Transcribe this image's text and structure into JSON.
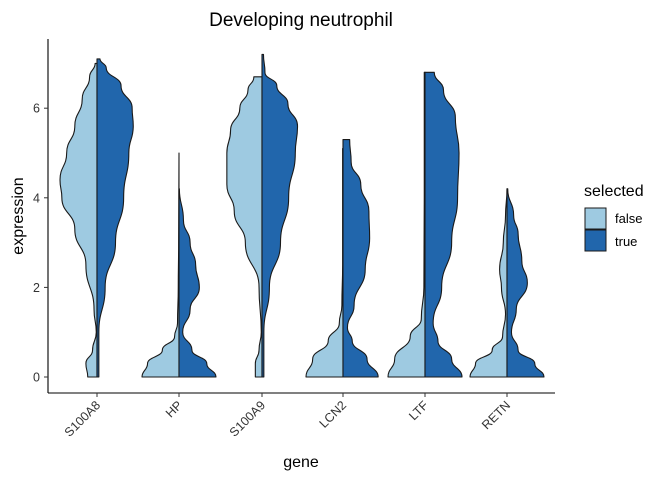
{
  "chart_data": {
    "type": "violin",
    "title": "Developing neutrophil",
    "xlabel": "gene",
    "ylabel": "expression",
    "ylim": [
      -0.3,
      7.5
    ],
    "yticks": [
      0,
      2,
      4,
      6
    ],
    "categories": [
      "S100A8",
      "HP",
      "S100A9",
      "LCN2",
      "LTF",
      "RETN"
    ],
    "colors": {
      "false": "#9ecae1",
      "true": "#2166ac"
    },
    "legend": {
      "title": "selected",
      "entries": [
        "false",
        "true"
      ],
      "position": "right"
    },
    "split_violins": [
      {
        "gene": "S100A8",
        "false": {
          "min": 0,
          "max": 7.0,
          "profile": [
            [
              0,
              0.25
            ],
            [
              0.3,
              0.3
            ],
            [
              0.6,
              0.12
            ],
            [
              1.0,
              0.02
            ],
            [
              1.5,
              0.08
            ],
            [
              2.5,
              0.3
            ],
            [
              3.3,
              0.6
            ],
            [
              4.0,
              0.95
            ],
            [
              4.4,
              1.0
            ],
            [
              5.0,
              0.82
            ],
            [
              5.6,
              0.6
            ],
            [
              6.2,
              0.4
            ],
            [
              6.7,
              0.2
            ],
            [
              7.0,
              0.05
            ]
          ]
        },
        "true": {
          "min": 0,
          "max": 7.1,
          "profile": [
            [
              0,
              0.05
            ],
            [
              1.0,
              0.05
            ],
            [
              2.0,
              0.22
            ],
            [
              3.0,
              0.5
            ],
            [
              4.0,
              0.72
            ],
            [
              5.0,
              0.86
            ],
            [
              5.6,
              0.98
            ],
            [
              6.0,
              0.95
            ],
            [
              6.5,
              0.65
            ],
            [
              6.9,
              0.25
            ],
            [
              7.1,
              0.08
            ]
          ]
        }
      },
      {
        "gene": "HP",
        "false": {
          "min": 0,
          "max": 5.0,
          "profile": [
            [
              0,
              1.0
            ],
            [
              0.3,
              0.85
            ],
            [
              0.6,
              0.45
            ],
            [
              0.9,
              0.12
            ],
            [
              1.2,
              0.04
            ],
            [
              2.0,
              0.02
            ],
            [
              3.0,
              0.01
            ],
            [
              4.0,
              0.005
            ],
            [
              5.0,
              0.0
            ]
          ]
        },
        "true": {
          "min": 0,
          "max": 4.2,
          "profile": [
            [
              0,
              1.0
            ],
            [
              0.3,
              0.75
            ],
            [
              0.6,
              0.35
            ],
            [
              1.0,
              0.1
            ],
            [
              1.5,
              0.3
            ],
            [
              2.0,
              0.55
            ],
            [
              2.5,
              0.45
            ],
            [
              3.0,
              0.3
            ],
            [
              3.5,
              0.12
            ],
            [
              4.2,
              0.01
            ]
          ]
        }
      },
      {
        "gene": "S100A9",
        "false": {
          "min": 0,
          "max": 6.7,
          "profile": [
            [
              0,
              0.18
            ],
            [
              0.3,
              0.18
            ],
            [
              0.6,
              0.08
            ],
            [
              1.0,
              0.02
            ],
            [
              2.0,
              0.08
            ],
            [
              3.0,
              0.45
            ],
            [
              3.7,
              0.75
            ],
            [
              4.3,
              0.95
            ],
            [
              5.0,
              0.95
            ],
            [
              5.5,
              0.85
            ],
            [
              6.0,
              0.6
            ],
            [
              6.4,
              0.38
            ],
            [
              6.7,
              0.22
            ]
          ]
        },
        "true": {
          "min": 0,
          "max": 7.2,
          "profile": [
            [
              0,
              0.05
            ],
            [
              1.0,
              0.05
            ],
            [
              2.0,
              0.2
            ],
            [
              3.0,
              0.5
            ],
            [
              4.0,
              0.72
            ],
            [
              5.0,
              0.9
            ],
            [
              5.6,
              0.96
            ],
            [
              6.1,
              0.7
            ],
            [
              6.5,
              0.4
            ],
            [
              6.8,
              0.08
            ],
            [
              7.2,
              0.04
            ]
          ]
        }
      },
      {
        "gene": "LCN2",
        "false": {
          "min": 0,
          "max": 5.1,
          "profile": [
            [
              0,
              1.0
            ],
            [
              0.4,
              0.82
            ],
            [
              0.8,
              0.4
            ],
            [
              1.2,
              0.1
            ],
            [
              1.6,
              0.03
            ],
            [
              2.5,
              0.01
            ],
            [
              5.1,
              0.01
            ]
          ]
        },
        "true": {
          "min": 0,
          "max": 5.3,
          "profile": [
            [
              0,
              0.95
            ],
            [
              0.4,
              0.65
            ],
            [
              0.8,
              0.25
            ],
            [
              1.1,
              0.12
            ],
            [
              1.6,
              0.3
            ],
            [
              2.4,
              0.6
            ],
            [
              3.1,
              0.72
            ],
            [
              3.7,
              0.7
            ],
            [
              4.3,
              0.48
            ],
            [
              4.8,
              0.22
            ],
            [
              5.3,
              0.18
            ]
          ]
        }
      },
      {
        "gene": "LTF",
        "false": {
          "min": 0,
          "max": 6.8,
          "profile": [
            [
              0,
              1.0
            ],
            [
              0.4,
              0.82
            ],
            [
              0.9,
              0.4
            ],
            [
              1.3,
              0.1
            ],
            [
              2.0,
              0.03
            ],
            [
              4.0,
              0.02
            ],
            [
              6.8,
              0.02
            ]
          ]
        },
        "true": {
          "min": 0,
          "max": 6.8,
          "profile": [
            [
              0,
              1.0
            ],
            [
              0.4,
              0.72
            ],
            [
              0.8,
              0.35
            ],
            [
              1.2,
              0.22
            ],
            [
              2.0,
              0.45
            ],
            [
              3.0,
              0.72
            ],
            [
              4.0,
              0.88
            ],
            [
              5.0,
              0.92
            ],
            [
              5.8,
              0.82
            ],
            [
              6.4,
              0.5
            ],
            [
              6.8,
              0.25
            ]
          ]
        }
      },
      {
        "gene": "RETN",
        "false": {
          "min": 0,
          "max": 4.2,
          "profile": [
            [
              0,
              1.0
            ],
            [
              0.3,
              0.85
            ],
            [
              0.6,
              0.4
            ],
            [
              0.9,
              0.12
            ],
            [
              1.4,
              0.04
            ],
            [
              2.0,
              0.15
            ],
            [
              2.4,
              0.2
            ],
            [
              3.0,
              0.1
            ],
            [
              3.6,
              0.04
            ],
            [
              4.2,
              0.0
            ]
          ]
        },
        "true": {
          "min": 0,
          "max": 4.2,
          "profile": [
            [
              0,
              1.0
            ],
            [
              0.3,
              0.75
            ],
            [
              0.6,
              0.3
            ],
            [
              1.0,
              0.12
            ],
            [
              1.5,
              0.25
            ],
            [
              2.1,
              0.55
            ],
            [
              2.6,
              0.4
            ],
            [
              3.2,
              0.3
            ],
            [
              3.6,
              0.18
            ],
            [
              4.2,
              0.02
            ]
          ]
        }
      }
    ]
  }
}
